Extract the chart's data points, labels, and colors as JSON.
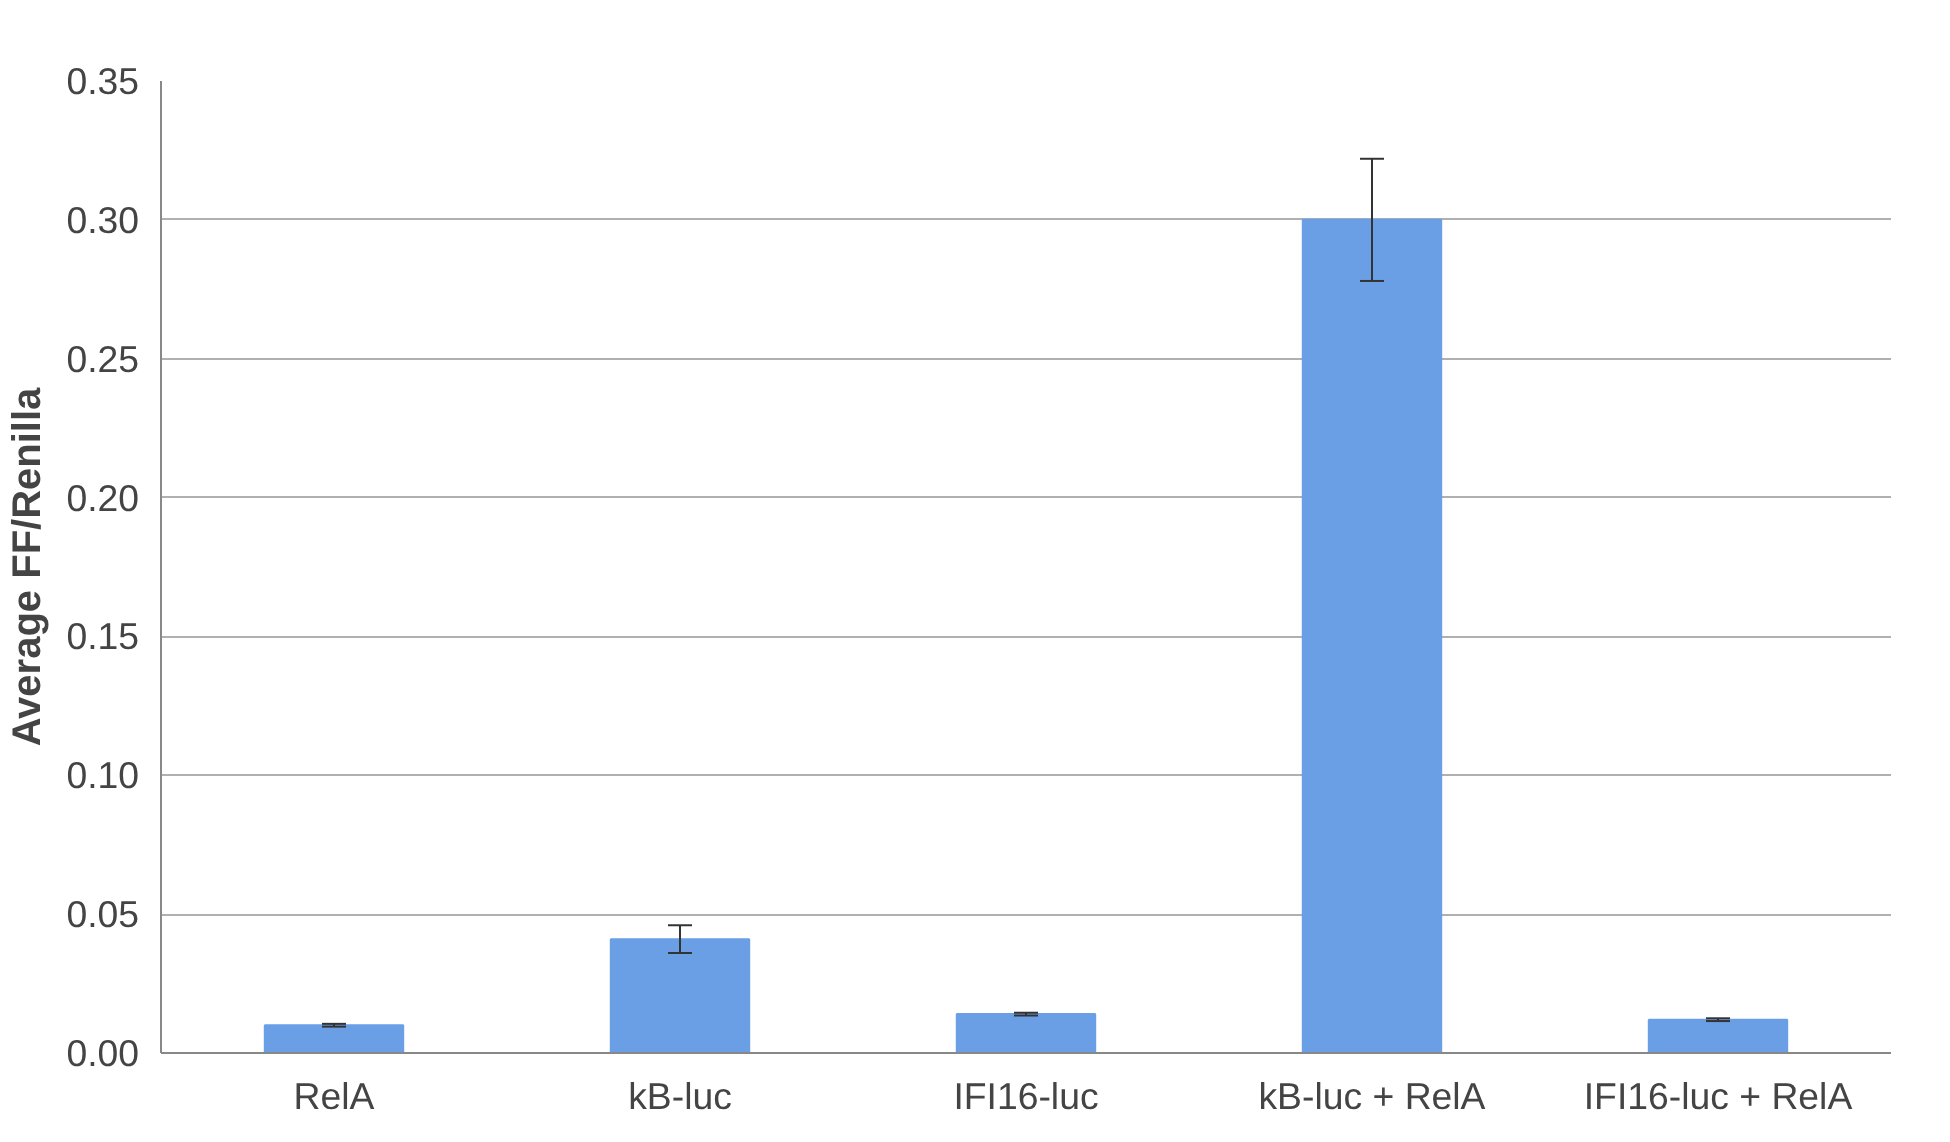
{
  "chart_data": {
    "type": "bar",
    "ylabel": "Average FF/Renilla",
    "categories": [
      "RelA",
      "kB-luc",
      "IFI16-luc",
      "kB-luc + RelA",
      "IFI16-luc + RelA"
    ],
    "values": [
      0.01,
      0.041,
      0.014,
      0.3,
      0.012
    ],
    "errors": [
      0.0005,
      0.005,
      0.0005,
      0.022,
      0.0005
    ],
    "color": "#6a9fe6",
    "ylim": [
      0,
      0.35
    ],
    "yticks": [
      {
        "value": 0,
        "label": "0.00"
      },
      {
        "value": 0.05,
        "label": "0.05"
      },
      {
        "value": 0.1,
        "label": "0.10"
      },
      {
        "value": 0.15,
        "label": "0.15"
      },
      {
        "value": 0.2,
        "label": "0.20"
      },
      {
        "value": 0.25,
        "label": "0.25"
      },
      {
        "value": 0.3,
        "label": "0.30"
      },
      {
        "value": 0.35,
        "label": "0.35"
      }
    ],
    "grid": "y"
  }
}
